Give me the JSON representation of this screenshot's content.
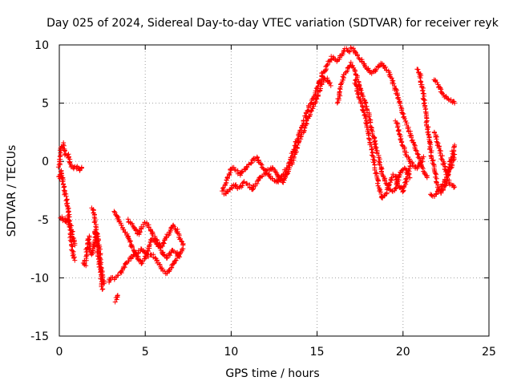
{
  "chart_data": {
    "type": "scatter",
    "title": "Day 025 of 2024, Sidereal Day-to-day VTEC variation (SDTVAR) for receiver reyk",
    "xlabel": "GPS time / hours",
    "ylabel": "SDTVAR / TECUs",
    "xlim": [
      0,
      25
    ],
    "ylim": [
      -15,
      10
    ],
    "xticks": [
      "0",
      "5",
      "10",
      "15",
      "20",
      "25"
    ],
    "yticks": [
      "10",
      "5",
      "0",
      "-5",
      "-10",
      "-15"
    ],
    "grid": true,
    "marker": "+",
    "series_color": "#ff0000",
    "traces": [
      {
        "name": "trace-1",
        "points": [
          [
            0.0,
            -0.5
          ],
          [
            0.1,
            1.0
          ],
          [
            0.2,
            1.5
          ],
          [
            0.3,
            0.8
          ],
          [
            0.4,
            0.5
          ],
          [
            0.5,
            0.6
          ],
          [
            0.6,
            0.0
          ],
          [
            0.7,
            -0.3
          ],
          [
            0.8,
            -0.6
          ],
          [
            0.9,
            -0.5
          ],
          [
            1.0,
            -0.5
          ],
          [
            1.1,
            -0.6
          ],
          [
            1.2,
            -0.8
          ],
          [
            1.3,
            -0.5
          ]
        ]
      },
      {
        "name": "trace-2",
        "points": [
          [
            0.0,
            -1.5
          ],
          [
            0.1,
            -0.8
          ],
          [
            0.2,
            -1.6
          ],
          [
            0.3,
            -2.5
          ],
          [
            0.4,
            -3.2
          ],
          [
            0.5,
            -4.0
          ],
          [
            0.6,
            -5.5
          ],
          [
            0.7,
            -7.0
          ],
          [
            0.8,
            -8.0
          ],
          [
            0.9,
            -8.5
          ]
        ]
      },
      {
        "name": "trace-3",
        "points": [
          [
            0.1,
            -4.8
          ],
          [
            0.2,
            -5.0
          ],
          [
            0.3,
            -4.9
          ],
          [
            0.4,
            -5.2
          ],
          [
            0.5,
            -5.0
          ],
          [
            0.6,
            -5.3
          ],
          [
            0.7,
            -5.8
          ],
          [
            0.8,
            -6.5
          ],
          [
            0.9,
            -7.2
          ]
        ]
      },
      {
        "name": "trace-4",
        "points": [
          [
            1.4,
            -8.7
          ],
          [
            1.5,
            -8.9
          ],
          [
            1.6,
            -7.5
          ],
          [
            1.7,
            -6.5
          ],
          [
            1.8,
            -7.8
          ],
          [
            1.9,
            -8.0
          ],
          [
            2.0,
            -7.3
          ],
          [
            2.1,
            -6.0
          ],
          [
            2.2,
            -7.0
          ],
          [
            2.3,
            -8.5
          ],
          [
            2.4,
            -9.5
          ],
          [
            2.5,
            -11.0
          ]
        ]
      },
      {
        "name": "trace-5",
        "points": [
          [
            1.9,
            -4.0
          ],
          [
            2.0,
            -4.5
          ],
          [
            2.1,
            -5.5
          ],
          [
            2.2,
            -6.3
          ],
          [
            2.3,
            -7.2
          ],
          [
            2.4,
            -8.6
          ],
          [
            2.5,
            -9.8
          ],
          [
            2.6,
            -10.5
          ]
        ]
      },
      {
        "name": "trace-6",
        "points": [
          [
            3.3,
            -12.0
          ],
          [
            3.4,
            -11.5
          ]
        ]
      },
      {
        "name": "trace-7",
        "points": [
          [
            2.9,
            -10.3
          ],
          [
            3.0,
            -10.0
          ],
          [
            3.2,
            -10.1
          ],
          [
            3.4,
            -9.8
          ],
          [
            3.6,
            -9.5
          ],
          [
            3.8,
            -9.0
          ],
          [
            4.0,
            -8.6
          ],
          [
            4.2,
            -8.2
          ],
          [
            4.4,
            -8.0
          ],
          [
            4.6,
            -7.8
          ],
          [
            4.8,
            -7.5
          ],
          [
            5.0,
            -7.8
          ],
          [
            5.2,
            -8.1
          ],
          [
            5.4,
            -8.0
          ],
          [
            5.6,
            -8.3
          ],
          [
            5.8,
            -8.8
          ],
          [
            6.0,
            -9.3
          ],
          [
            6.2,
            -9.6
          ],
          [
            6.4,
            -9.4
          ],
          [
            6.6,
            -8.9
          ],
          [
            6.8,
            -8.4
          ],
          [
            7.0,
            -8.0
          ],
          [
            7.2,
            -7.5
          ]
        ]
      },
      {
        "name": "trace-8",
        "points": [
          [
            3.2,
            -4.3
          ],
          [
            3.4,
            -4.8
          ],
          [
            3.6,
            -5.4
          ],
          [
            3.8,
            -6.0
          ],
          [
            4.0,
            -6.5
          ],
          [
            4.2,
            -7.2
          ],
          [
            4.4,
            -7.8
          ],
          [
            4.6,
            -8.4
          ],
          [
            4.8,
            -8.8
          ],
          [
            5.0,
            -8.3
          ],
          [
            5.2,
            -7.4
          ],
          [
            5.4,
            -6.6
          ],
          [
            5.6,
            -6.9
          ],
          [
            5.8,
            -7.4
          ],
          [
            6.0,
            -7.2
          ],
          [
            6.2,
            -6.5
          ],
          [
            6.4,
            -6.1
          ],
          [
            6.6,
            -5.5
          ],
          [
            6.8,
            -5.8
          ],
          [
            7.0,
            -6.6
          ],
          [
            7.2,
            -7.2
          ]
        ]
      },
      {
        "name": "trace-9",
        "points": [
          [
            4.0,
            -5.0
          ],
          [
            4.2,
            -5.4
          ],
          [
            4.4,
            -5.8
          ],
          [
            4.6,
            -6.3
          ],
          [
            4.8,
            -5.6
          ],
          [
            5.0,
            -5.2
          ],
          [
            5.2,
            -5.5
          ],
          [
            5.4,
            -6.2
          ],
          [
            5.6,
            -6.6
          ],
          [
            5.8,
            -7.0
          ],
          [
            6.0,
            -7.8
          ],
          [
            6.2,
            -8.3
          ],
          [
            6.4,
            -8.0
          ],
          [
            6.6,
            -7.6
          ],
          [
            6.8,
            -7.8
          ],
          [
            7.0,
            -8.2
          ]
        ]
      },
      {
        "name": "trace-10",
        "points": [
          [
            9.5,
            -2.5
          ],
          [
            9.7,
            -1.8
          ],
          [
            9.9,
            -1.0
          ],
          [
            10.1,
            -0.5
          ],
          [
            10.3,
            -0.8
          ],
          [
            10.5,
            -1.2
          ],
          [
            10.7,
            -0.8
          ],
          [
            10.9,
            -0.6
          ],
          [
            11.1,
            -0.2
          ],
          [
            11.3,
            0.2
          ],
          [
            11.5,
            0.3
          ],
          [
            11.7,
            -0.3
          ],
          [
            11.9,
            -0.7
          ],
          [
            12.1,
            -1.0
          ],
          [
            12.3,
            -1.3
          ],
          [
            12.5,
            -1.6
          ],
          [
            12.7,
            -1.8
          ],
          [
            12.9,
            -1.4
          ],
          [
            13.1,
            -0.9
          ],
          [
            13.3,
            -0.4
          ],
          [
            13.5,
            0.4
          ],
          [
            13.7,
            1.2
          ],
          [
            13.9,
            2.2
          ],
          [
            14.1,
            3.0
          ],
          [
            14.3,
            3.8
          ],
          [
            14.5,
            4.6
          ],
          [
            14.7,
            5.2
          ],
          [
            14.9,
            5.8
          ],
          [
            15.1,
            6.6
          ],
          [
            15.3,
            7.5
          ],
          [
            15.5,
            8.0
          ],
          [
            15.7,
            8.6
          ],
          [
            15.9,
            9.0
          ],
          [
            16.1,
            8.6
          ],
          [
            16.3,
            8.8
          ],
          [
            16.5,
            9.4
          ],
          [
            16.7,
            9.7
          ],
          [
            16.9,
            9.4
          ]
        ]
      },
      {
        "name": "trace-11",
        "points": [
          [
            9.6,
            -2.8
          ],
          [
            9.8,
            -2.6
          ],
          [
            10.0,
            -2.3
          ],
          [
            10.2,
            -2.0
          ],
          [
            10.4,
            -2.4
          ],
          [
            10.6,
            -2.1
          ],
          [
            10.8,
            -1.8
          ],
          [
            11.0,
            -2.0
          ],
          [
            11.2,
            -2.4
          ],
          [
            11.4,
            -2.0
          ],
          [
            11.6,
            -1.5
          ],
          [
            11.8,
            -1.3
          ],
          [
            12.0,
            -1.0
          ],
          [
            12.2,
            -0.7
          ],
          [
            12.4,
            -0.5
          ],
          [
            12.6,
            -1.0
          ],
          [
            12.8,
            -1.5
          ],
          [
            13.0,
            -1.8
          ],
          [
            13.2,
            -1.2
          ],
          [
            13.4,
            -0.6
          ],
          [
            13.6,
            0.2
          ],
          [
            13.8,
            1.0
          ],
          [
            14.0,
            1.8
          ],
          [
            14.2,
            2.6
          ],
          [
            14.4,
            3.4
          ],
          [
            14.6,
            4.2
          ],
          [
            14.8,
            4.8
          ],
          [
            15.0,
            5.4
          ],
          [
            15.2,
            6.4
          ],
          [
            15.4,
            7.2
          ],
          [
            15.6,
            7.0
          ],
          [
            15.8,
            6.5
          ]
        ]
      },
      {
        "name": "trace-12",
        "points": [
          [
            17.0,
            9.8
          ],
          [
            17.2,
            9.5
          ],
          [
            17.4,
            9.0
          ],
          [
            17.6,
            8.6
          ],
          [
            17.8,
            8.2
          ],
          [
            18.0,
            7.8
          ],
          [
            18.2,
            7.6
          ],
          [
            18.4,
            7.8
          ],
          [
            18.6,
            8.2
          ],
          [
            18.8,
            8.4
          ],
          [
            19.0,
            8.0
          ],
          [
            19.2,
            7.6
          ],
          [
            19.4,
            6.8
          ],
          [
            19.6,
            6.0
          ],
          [
            19.8,
            5.0
          ],
          [
            20.0,
            4.0
          ],
          [
            20.2,
            3.2
          ],
          [
            20.4,
            2.4
          ],
          [
            20.6,
            1.6
          ],
          [
            20.8,
            0.8
          ],
          [
            21.0,
            0.0
          ],
          [
            21.2,
            -0.8
          ],
          [
            21.4,
            -1.4
          ]
        ]
      },
      {
        "name": "trace-13",
        "points": [
          [
            16.2,
            5.0
          ],
          [
            16.4,
            6.5
          ],
          [
            16.6,
            7.6
          ],
          [
            16.8,
            8.0
          ],
          [
            17.0,
            8.4
          ],
          [
            17.2,
            7.8
          ],
          [
            17.4,
            6.8
          ],
          [
            17.6,
            5.8
          ],
          [
            17.8,
            5.0
          ],
          [
            18.0,
            4.0
          ],
          [
            18.2,
            2.6
          ],
          [
            18.4,
            1.4
          ],
          [
            18.6,
            0.2
          ],
          [
            18.8,
            -1.0
          ],
          [
            19.0,
            -1.8
          ],
          [
            19.2,
            -2.4
          ],
          [
            19.4,
            -2.6
          ],
          [
            19.6,
            -2.2
          ],
          [
            19.8,
            -1.2
          ],
          [
            20.0,
            -0.6
          ],
          [
            20.2,
            -0.8
          ],
          [
            20.4,
            -1.4
          ]
        ]
      },
      {
        "name": "trace-14",
        "points": [
          [
            17.2,
            7.0
          ],
          [
            17.4,
            5.8
          ],
          [
            17.6,
            4.8
          ],
          [
            17.8,
            3.8
          ],
          [
            18.0,
            2.4
          ],
          [
            18.2,
            0.8
          ],
          [
            18.4,
            -0.8
          ],
          [
            18.6,
            -2.4
          ],
          [
            18.8,
            -3.2
          ],
          [
            19.0,
            -2.8
          ],
          [
            19.2,
            -2.0
          ],
          [
            19.4,
            -1.2
          ],
          [
            19.6,
            -1.4
          ],
          [
            19.8,
            -2.2
          ],
          [
            20.0,
            -2.6
          ],
          [
            20.2,
            -1.6
          ],
          [
            20.4,
            -0.4
          ]
        ]
      },
      {
        "name": "trace-15",
        "points": [
          [
            19.6,
            3.4
          ],
          [
            19.8,
            2.4
          ],
          [
            20.0,
            1.4
          ],
          [
            20.2,
            0.6
          ],
          [
            20.4,
            0.0
          ],
          [
            20.6,
            -0.4
          ],
          [
            20.8,
            -0.6
          ],
          [
            21.0,
            -0.2
          ],
          [
            21.2,
            0.4
          ]
        ]
      },
      {
        "name": "trace-16",
        "points": [
          [
            20.8,
            8.0
          ],
          [
            21.0,
            7.4
          ],
          [
            21.2,
            5.6
          ],
          [
            21.4,
            3.2
          ],
          [
            21.6,
            1.0
          ],
          [
            21.8,
            -0.6
          ],
          [
            22.0,
            -2.0
          ],
          [
            22.2,
            -2.8
          ],
          [
            22.4,
            -2.2
          ],
          [
            22.6,
            -1.6
          ],
          [
            22.8,
            -2.0
          ],
          [
            23.0,
            -2.2
          ]
        ]
      },
      {
        "name": "trace-17",
        "points": [
          [
            21.6,
            -2.8
          ],
          [
            21.8,
            -3.0
          ],
          [
            22.0,
            -2.6
          ],
          [
            22.2,
            -2.2
          ],
          [
            22.4,
            -1.8
          ],
          [
            22.6,
            -1.0
          ],
          [
            22.8,
            0.2
          ],
          [
            23.0,
            1.4
          ]
        ]
      },
      {
        "name": "trace-18",
        "points": [
          [
            21.8,
            7.0
          ],
          [
            22.0,
            6.6
          ],
          [
            22.2,
            6.0
          ],
          [
            22.4,
            5.6
          ],
          [
            22.6,
            5.4
          ],
          [
            22.8,
            5.2
          ],
          [
            23.0,
            5.0
          ]
        ]
      },
      {
        "name": "trace-19",
        "points": [
          [
            21.8,
            2.6
          ],
          [
            22.0,
            1.6
          ],
          [
            22.2,
            0.6
          ],
          [
            22.4,
            -0.4
          ],
          [
            22.6,
            -1.2
          ],
          [
            22.8,
            -0.4
          ],
          [
            23.0,
            0.6
          ]
        ]
      }
    ]
  }
}
